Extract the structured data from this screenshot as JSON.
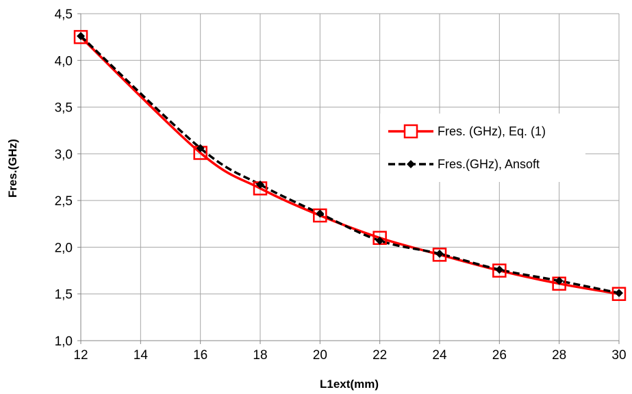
{
  "chart_data": {
    "type": "line",
    "title": "",
    "xlabel": "L1ext(mm)",
    "ylabel": "Fres.(GHz)",
    "xlim": [
      12,
      30
    ],
    "ylim": [
      1.0,
      4.5
    ],
    "x_ticks": [
      12,
      14,
      16,
      18,
      20,
      22,
      24,
      26,
      28,
      30
    ],
    "x_tick_labels": [
      "12",
      "14",
      "16",
      "18",
      "20",
      "22",
      "24",
      "26",
      "28",
      "30"
    ],
    "y_ticks": [
      1.0,
      1.5,
      2.0,
      2.5,
      3.0,
      3.5,
      4.0,
      4.5
    ],
    "y_tick_labels": [
      "1,0",
      "1,5",
      "2,0",
      "2,5",
      "3,0",
      "3,5",
      "4,0",
      "4,5"
    ],
    "grid": true,
    "legend_position": "right",
    "series": [
      {
        "name": "Fres. (GHz), Eq. (1)",
        "color": "#ff0000",
        "line_style": "solid",
        "marker": "hollow-square",
        "x": [
          12,
          16,
          18,
          20,
          22,
          24,
          26,
          28,
          30
        ],
        "y": [
          4.25,
          3.01,
          2.63,
          2.34,
          2.1,
          1.92,
          1.75,
          1.61,
          1.5
        ]
      },
      {
        "name": "Fres.(GHz), Ansoft",
        "color": "#000000",
        "line_style": "dashed",
        "marker": "filled-diamond",
        "x": [
          12,
          16,
          18,
          20,
          22,
          24,
          26,
          28,
          30
        ],
        "y": [
          4.26,
          3.06,
          2.67,
          2.36,
          2.07,
          1.93,
          1.76,
          1.64,
          1.51
        ]
      }
    ]
  }
}
